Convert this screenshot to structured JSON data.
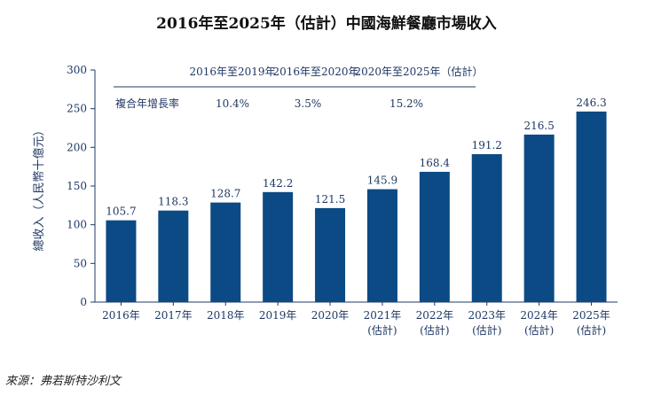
{
  "chart_data": {
    "type": "bar",
    "title": "2016年至2025年（估計）中國海鮮餐廳市場收入",
    "ylabel": "總收入（人民幣十億元）",
    "xlabel": "",
    "ylim": [
      0,
      300
    ],
    "yticks": [
      0,
      50,
      100,
      150,
      200,
      250,
      300
    ],
    "categories": [
      {
        "year": "2016年",
        "note": ""
      },
      {
        "year": "2017年",
        "note": ""
      },
      {
        "year": "2018年",
        "note": ""
      },
      {
        "year": "2019年",
        "note": ""
      },
      {
        "year": "2020年",
        "note": ""
      },
      {
        "year": "2021年",
        "note": "(估計)"
      },
      {
        "year": "2022年",
        "note": "(估計)"
      },
      {
        "year": "2023年",
        "note": "(估計)"
      },
      {
        "year": "2024年",
        "note": "(估計)"
      },
      {
        "year": "2025年",
        "note": "(估計)"
      }
    ],
    "values": [
      105.7,
      118.3,
      128.7,
      142.2,
      121.5,
      145.9,
      168.4,
      191.2,
      216.5,
      246.3
    ],
    "bar_color": "#0b4a85",
    "cagr_table": {
      "label": "複合年增長率",
      "periods": [
        "2016年至2019年",
        "2016年至2020年",
        "2020年至2025年（估計）"
      ],
      "rates": [
        "10.4%",
        "3.5%",
        "15.2%"
      ]
    },
    "grid": false
  },
  "source": "來源：弗若斯特沙利文"
}
